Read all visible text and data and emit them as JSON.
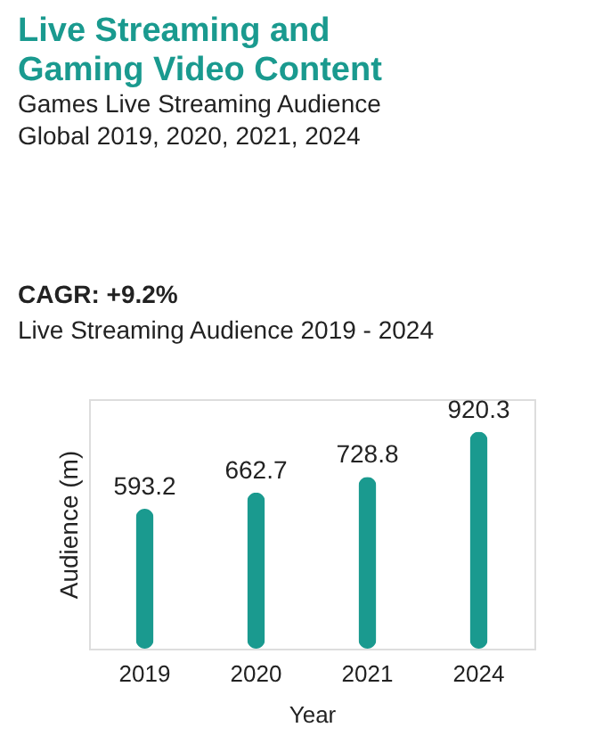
{
  "chart_data": {
    "type": "bar",
    "title": "Live Streaming and Gaming Video Content",
    "subtitle": "Games Live Streaming Audience Global 2019, 2020, 2021, 2024",
    "annotations": [
      "CAGR: +9.2%",
      "Live Streaming Audience 2019 - 2024"
    ],
    "categories": [
      "2019",
      "2020",
      "2021",
      "2024"
    ],
    "values": [
      593.2,
      662.7,
      728.8,
      920.3
    ],
    "color": "#1a9a8f",
    "data_labels": true,
    "xlabel": "Year",
    "ylabel": "Audience (m)",
    "grid": false
  }
}
